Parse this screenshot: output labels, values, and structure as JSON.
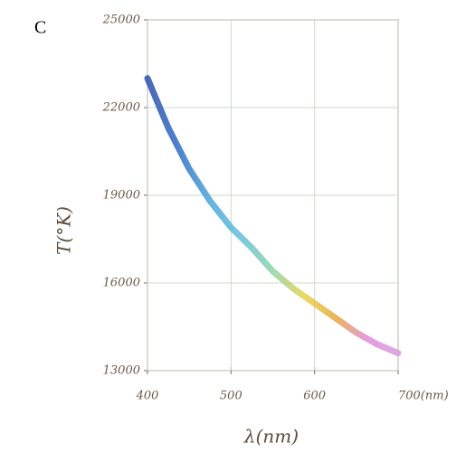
{
  "chart_data": {
    "type": "line",
    "panel_label": "C",
    "ylabel": "T(°K)",
    "xlabel": "λ(nm)",
    "x": [
      400,
      425,
      450,
      475,
      500,
      525,
      550,
      575,
      600,
      625,
      650,
      675,
      700
    ],
    "values": [
      23000,
      21300,
      19900,
      18800,
      17900,
      17200,
      16400,
      15800,
      15300,
      14800,
      14300,
      13900,
      13600
    ],
    "line_colors": [
      "#2a4fa8",
      "#2f6cc4",
      "#4aa6d8",
      "#62c0d8",
      "#8fd3a8",
      "#e6d24a",
      "#e8a838",
      "#e08ad8",
      "#d89ae0"
    ],
    "xlim": [
      400,
      700
    ],
    "ylim": [
      13000,
      25000
    ],
    "xticks": [
      400,
      500,
      600,
      {
        "value": 700,
        "label": "700(nm)"
      }
    ],
    "yticks": [
      13000,
      16000,
      19000,
      22000,
      25000
    ],
    "grid": true
  }
}
